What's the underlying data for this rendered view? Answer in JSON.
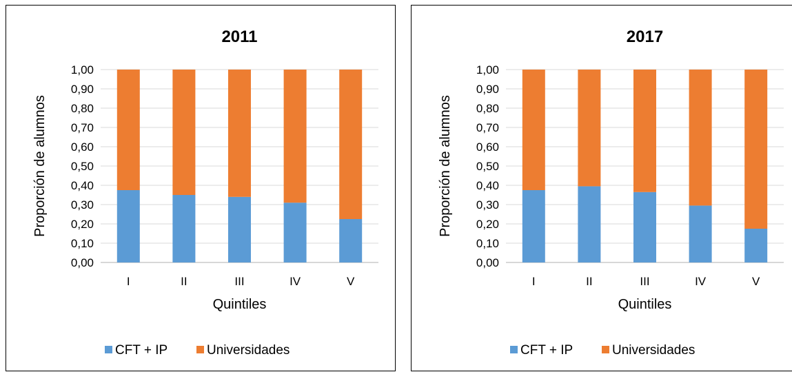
{
  "chart_data": [
    {
      "type": "bar",
      "stacked": true,
      "title": "2011",
      "xlabel": "Quintiles",
      "ylabel": "Proporción de alumnos",
      "ylim": [
        0,
        1
      ],
      "yticks": [
        "0,00",
        "0,10",
        "0,20",
        "0,30",
        "0,40",
        "0,50",
        "0,60",
        "0,70",
        "0,80",
        "0,90",
        "1,00"
      ],
      "categories": [
        "I",
        "II",
        "III",
        "IV",
        "V"
      ],
      "series": [
        {
          "name": "CFT + IP",
          "color": "#5b9bd5",
          "values": [
            0.375,
            0.35,
            0.34,
            0.31,
            0.225
          ]
        },
        {
          "name": "Universidades",
          "color": "#ed7d31",
          "values": [
            0.625,
            0.65,
            0.66,
            0.69,
            0.775
          ]
        }
      ],
      "grid": true,
      "legend": "bottom"
    },
    {
      "type": "bar",
      "stacked": true,
      "title": "2017",
      "xlabel": "Quintiles",
      "ylabel": "Proporción de alumnos",
      "ylim": [
        0,
        1
      ],
      "yticks": [
        "0,00",
        "0,10",
        "0,20",
        "0,30",
        "0,40",
        "0,50",
        "0,60",
        "0,70",
        "0,80",
        "0,90",
        "1,00"
      ],
      "categories": [
        "I",
        "II",
        "III",
        "IV",
        "V"
      ],
      "series": [
        {
          "name": "CFT + IP",
          "color": "#5b9bd5",
          "values": [
            0.375,
            0.395,
            0.365,
            0.295,
            0.175
          ]
        },
        {
          "name": "Universidades",
          "color": "#ed7d31",
          "values": [
            0.625,
            0.605,
            0.635,
            0.705,
            0.825
          ]
        }
      ],
      "grid": true,
      "legend": "bottom"
    }
  ]
}
